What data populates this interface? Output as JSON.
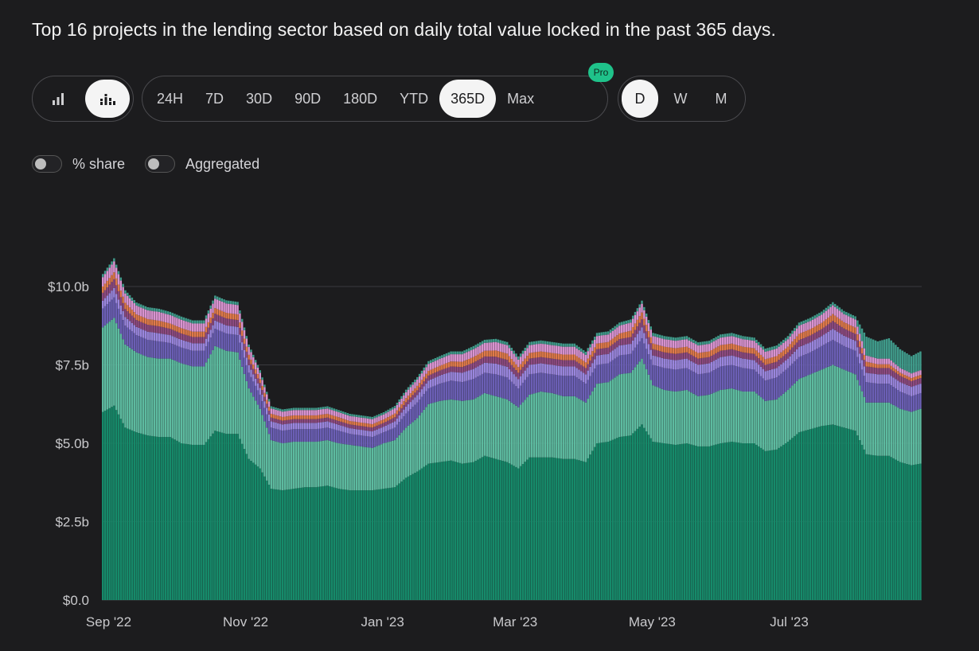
{
  "title": "Top 16 projects in the lending sector based on daily total value locked in the past 365 days.",
  "chart_type_buttons": [
    {
      "icon": "bar-chart-icon",
      "active": false
    },
    {
      "icon": "stacked-bar-chart-icon",
      "active": true
    }
  ],
  "time_ranges": [
    {
      "label": "24H",
      "active": false
    },
    {
      "label": "7D",
      "active": false
    },
    {
      "label": "30D",
      "active": false
    },
    {
      "label": "90D",
      "active": false
    },
    {
      "label": "180D",
      "active": false
    },
    {
      "label": "YTD",
      "active": false
    },
    {
      "label": "365D",
      "active": true
    },
    {
      "label": "Max",
      "active": false
    }
  ],
  "pro_badge": "Pro",
  "resolutions": [
    {
      "label": "D",
      "active": true
    },
    {
      "label": "W",
      "active": false
    },
    {
      "label": "M",
      "active": false
    }
  ],
  "toggles": {
    "share_label": "% share",
    "aggregated_label": "Aggregated",
    "share_on": false,
    "aggregated_on": false
  },
  "colors": {
    "background": "#1c1c1e",
    "accent": "#1fc28a"
  },
  "chart_data": {
    "type": "bar",
    "stacked": true,
    "y_tick_labels": [
      "$0.0",
      "$2.5b",
      "$5.0b",
      "$7.5b",
      "$10.0b"
    ],
    "y_tick_values": [
      0,
      2.5,
      5.0,
      7.5,
      10.0
    ],
    "ylim": [
      0,
      10.5
    ],
    "x_tick_labels": [
      "Sep '22",
      "Nov '22",
      "Jan '23",
      "Mar '23",
      "May '23",
      "Jul '23"
    ],
    "x_tick_months": [
      "2022-09",
      "2022-11",
      "2023-01",
      "2023-03",
      "2023-05",
      "2023-07"
    ],
    "x": [
      "2022-08-29",
      "2022-09-03",
      "2022-09-08",
      "2022-09-13",
      "2022-09-18",
      "2022-09-23",
      "2022-09-28",
      "2022-10-03",
      "2022-10-08",
      "2022-10-13",
      "2022-10-18",
      "2022-10-23",
      "2022-10-28",
      "2022-11-02",
      "2022-11-07",
      "2022-11-12",
      "2022-11-17",
      "2022-11-22",
      "2022-11-27",
      "2022-12-02",
      "2022-12-07",
      "2022-12-12",
      "2022-12-17",
      "2022-12-22",
      "2022-12-27",
      "2023-01-01",
      "2023-01-06",
      "2023-01-11",
      "2023-01-16",
      "2023-01-21",
      "2023-01-26",
      "2023-01-31",
      "2023-02-05",
      "2023-02-10",
      "2023-02-15",
      "2023-02-20",
      "2023-02-25",
      "2023-03-02",
      "2023-03-07",
      "2023-03-12",
      "2023-03-17",
      "2023-03-22",
      "2023-03-27",
      "2023-04-01",
      "2023-04-06",
      "2023-04-11",
      "2023-04-16",
      "2023-04-21",
      "2023-04-26",
      "2023-05-01",
      "2023-05-06",
      "2023-05-11",
      "2023-05-16",
      "2023-05-21",
      "2023-05-26",
      "2023-05-31",
      "2023-06-05",
      "2023-06-10",
      "2023-06-15",
      "2023-06-20",
      "2023-06-25",
      "2023-06-30",
      "2023-07-05",
      "2023-07-10",
      "2023-07-15",
      "2023-07-20",
      "2023-07-25",
      "2023-07-30",
      "2023-08-04",
      "2023-08-09",
      "2023-08-14",
      "2023-08-19",
      "2023-08-24",
      "2023-08-28"
    ],
    "series": [
      {
        "color": "#168a6a",
        "values": [
          6.0,
          6.2,
          5.5,
          5.35,
          5.25,
          5.2,
          5.2,
          5.0,
          4.95,
          4.95,
          5.4,
          5.3,
          5.3,
          4.5,
          4.2,
          3.55,
          3.5,
          3.55,
          3.6,
          3.6,
          3.65,
          3.55,
          3.5,
          3.5,
          3.5,
          3.55,
          3.6,
          3.9,
          4.1,
          4.35,
          4.4,
          4.45,
          4.35,
          4.4,
          4.6,
          4.5,
          4.4,
          4.2,
          4.55,
          4.55,
          4.55,
          4.5,
          4.5,
          4.4,
          5.0,
          5.05,
          5.2,
          5.25,
          5.6,
          5.05,
          5.0,
          4.95,
          5.0,
          4.9,
          4.9,
          5.0,
          5.05,
          5.0,
          5.0,
          4.75,
          4.8,
          5.05,
          5.35,
          5.45,
          5.55,
          5.6,
          5.5,
          5.4,
          4.65,
          4.6,
          4.6,
          4.4,
          4.3,
          4.35
        ]
      },
      {
        "color": "#5dbba0",
        "values": [
          2.7,
          2.8,
          2.65,
          2.55,
          2.5,
          2.5,
          2.5,
          2.55,
          2.5,
          2.5,
          2.7,
          2.65,
          2.6,
          2.25,
          1.9,
          1.55,
          1.5,
          1.5,
          1.45,
          1.45,
          1.45,
          1.45,
          1.45,
          1.4,
          1.35,
          1.45,
          1.5,
          1.6,
          1.7,
          1.9,
          1.95,
          1.95,
          2.0,
          2.0,
          2.0,
          2.0,
          2.0,
          1.95,
          2.0,
          2.1,
          2.05,
          2.0,
          2.0,
          1.9,
          1.9,
          1.9,
          2.0,
          2.0,
          2.1,
          1.8,
          1.7,
          1.7,
          1.7,
          1.6,
          1.65,
          1.7,
          1.7,
          1.65,
          1.65,
          1.6,
          1.6,
          1.65,
          1.7,
          1.75,
          1.8,
          1.9,
          1.85,
          1.8,
          1.65,
          1.7,
          1.7,
          1.7,
          1.7,
          1.75
        ]
      },
      {
        "color": "#6b5fb5",
        "values": [
          0.6,
          0.65,
          0.6,
          0.55,
          0.55,
          0.55,
          0.5,
          0.5,
          0.5,
          0.5,
          0.55,
          0.55,
          0.55,
          0.5,
          0.45,
          0.4,
          0.4,
          0.4,
          0.4,
          0.4,
          0.4,
          0.4,
          0.35,
          0.35,
          0.35,
          0.35,
          0.4,
          0.45,
          0.5,
          0.5,
          0.55,
          0.6,
          0.6,
          0.65,
          0.65,
          0.7,
          0.7,
          0.6,
          0.65,
          0.6,
          0.6,
          0.65,
          0.65,
          0.6,
          0.6,
          0.6,
          0.6,
          0.6,
          0.65,
          0.65,
          0.7,
          0.7,
          0.7,
          0.7,
          0.7,
          0.75,
          0.75,
          0.75,
          0.7,
          0.65,
          0.7,
          0.7,
          0.7,
          0.7,
          0.75,
          0.8,
          0.75,
          0.75,
          0.65,
          0.6,
          0.6,
          0.55,
          0.5,
          0.5
        ]
      },
      {
        "color": "#9a86de",
        "values": [
          0.25,
          0.3,
          0.28,
          0.26,
          0.26,
          0.26,
          0.25,
          0.25,
          0.24,
          0.24,
          0.26,
          0.26,
          0.26,
          0.24,
          0.22,
          0.2,
          0.2,
          0.2,
          0.2,
          0.2,
          0.2,
          0.19,
          0.18,
          0.18,
          0.18,
          0.18,
          0.2,
          0.22,
          0.24,
          0.25,
          0.26,
          0.28,
          0.3,
          0.32,
          0.32,
          0.34,
          0.34,
          0.3,
          0.3,
          0.3,
          0.3,
          0.3,
          0.3,
          0.3,
          0.3,
          0.3,
          0.32,
          0.32,
          0.35,
          0.3,
          0.3,
          0.3,
          0.3,
          0.3,
          0.3,
          0.3,
          0.3,
          0.3,
          0.3,
          0.3,
          0.3,
          0.3,
          0.32,
          0.32,
          0.32,
          0.35,
          0.33,
          0.32,
          0.3,
          0.3,
          0.3,
          0.3,
          0.3,
          0.3
        ]
      },
      {
        "color": "#8d4a80",
        "values": [
          0.25,
          0.28,
          0.25,
          0.22,
          0.22,
          0.22,
          0.2,
          0.2,
          0.2,
          0.2,
          0.22,
          0.22,
          0.22,
          0.18,
          0.15,
          0.12,
          0.12,
          0.12,
          0.12,
          0.12,
          0.12,
          0.12,
          0.12,
          0.12,
          0.12,
          0.12,
          0.13,
          0.14,
          0.15,
          0.16,
          0.16,
          0.17,
          0.18,
          0.2,
          0.2,
          0.22,
          0.22,
          0.2,
          0.2,
          0.2,
          0.2,
          0.2,
          0.2,
          0.2,
          0.2,
          0.2,
          0.2,
          0.22,
          0.25,
          0.2,
          0.2,
          0.2,
          0.2,
          0.2,
          0.2,
          0.2,
          0.2,
          0.2,
          0.2,
          0.2,
          0.2,
          0.2,
          0.22,
          0.22,
          0.22,
          0.25,
          0.23,
          0.22,
          0.2,
          0.2,
          0.2,
          0.2,
          0.18,
          0.18
        ]
      },
      {
        "color": "#e07a4a",
        "values": [
          0.2,
          0.22,
          0.2,
          0.18,
          0.18,
          0.18,
          0.17,
          0.17,
          0.17,
          0.17,
          0.18,
          0.18,
          0.18,
          0.15,
          0.13,
          0.12,
          0.12,
          0.12,
          0.12,
          0.12,
          0.12,
          0.12,
          0.11,
          0.11,
          0.11,
          0.11,
          0.12,
          0.13,
          0.14,
          0.15,
          0.15,
          0.16,
          0.17,
          0.18,
          0.18,
          0.2,
          0.2,
          0.18,
          0.18,
          0.18,
          0.18,
          0.18,
          0.18,
          0.18,
          0.18,
          0.18,
          0.18,
          0.2,
          0.22,
          0.18,
          0.18,
          0.18,
          0.18,
          0.18,
          0.18,
          0.18,
          0.18,
          0.18,
          0.18,
          0.18,
          0.18,
          0.18,
          0.2,
          0.2,
          0.2,
          0.22,
          0.2,
          0.2,
          0.15,
          0.12,
          0.12,
          0.1,
          0.1,
          0.1
        ]
      },
      {
        "color": "#d993d0",
        "values": [
          0.3,
          0.35,
          0.3,
          0.28,
          0.28,
          0.28,
          0.27,
          0.27,
          0.26,
          0.26,
          0.3,
          0.3,
          0.3,
          0.25,
          0.2,
          0.17,
          0.17,
          0.17,
          0.17,
          0.17,
          0.17,
          0.16,
          0.16,
          0.16,
          0.16,
          0.16,
          0.17,
          0.19,
          0.2,
          0.22,
          0.22,
          0.23,
          0.24,
          0.25,
          0.25,
          0.27,
          0.27,
          0.24,
          0.25,
          0.25,
          0.25,
          0.25,
          0.25,
          0.24,
          0.24,
          0.24,
          0.25,
          0.26,
          0.28,
          0.24,
          0.24,
          0.24,
          0.24,
          0.24,
          0.24,
          0.24,
          0.24,
          0.24,
          0.24,
          0.24,
          0.24,
          0.24,
          0.26,
          0.26,
          0.26,
          0.28,
          0.26,
          0.26,
          0.2,
          0.18,
          0.18,
          0.15,
          0.15,
          0.15
        ]
      },
      {
        "color": "#3f9a8a",
        "values": [
          0.1,
          0.1,
          0.1,
          0.1,
          0.1,
          0.1,
          0.1,
          0.1,
          0.1,
          0.1,
          0.1,
          0.1,
          0.1,
          0.08,
          0.08,
          0.07,
          0.07,
          0.07,
          0.07,
          0.07,
          0.07,
          0.07,
          0.07,
          0.07,
          0.07,
          0.07,
          0.07,
          0.08,
          0.08,
          0.09,
          0.09,
          0.09,
          0.09,
          0.1,
          0.1,
          0.1,
          0.1,
          0.1,
          0.1,
          0.1,
          0.1,
          0.1,
          0.1,
          0.1,
          0.1,
          0.1,
          0.1,
          0.1,
          0.1,
          0.1,
          0.1,
          0.1,
          0.1,
          0.1,
          0.1,
          0.1,
          0.1,
          0.1,
          0.1,
          0.1,
          0.1,
          0.1,
          0.1,
          0.1,
          0.1,
          0.1,
          0.1,
          0.1,
          0.6,
          0.55,
          0.65,
          0.6,
          0.55,
          0.6
        ]
      }
    ],
    "grid": true,
    "legend": "none"
  }
}
